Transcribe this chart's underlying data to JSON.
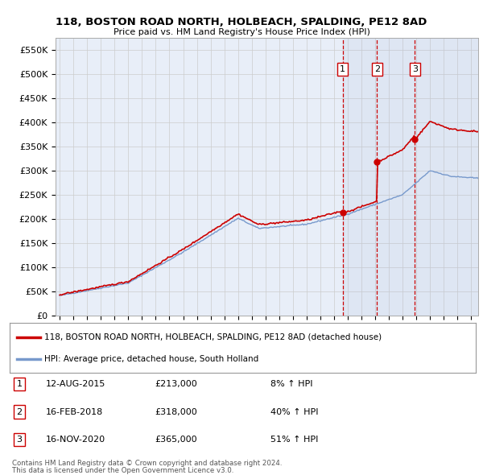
{
  "title": "118, BOSTON ROAD NORTH, HOLBEACH, SPALDING, PE12 8AD",
  "subtitle": "Price paid vs. HM Land Registry's House Price Index (HPI)",
  "ylim": [
    0,
    575000
  ],
  "yticks": [
    0,
    50000,
    100000,
    150000,
    200000,
    250000,
    300000,
    350000,
    400000,
    450000,
    500000,
    550000
  ],
  "ytick_labels": [
    "£0",
    "£50K",
    "£100K",
    "£150K",
    "£200K",
    "£250K",
    "£300K",
    "£350K",
    "£400K",
    "£450K",
    "£500K",
    "£550K"
  ],
  "xlim_start": 1994.7,
  "xlim_end": 2025.5,
  "background_color": "#ffffff",
  "plot_bg_color": "#e8eef8",
  "grid_color": "#cccccc",
  "red_line_color": "#cc0000",
  "blue_line_color": "#7799cc",
  "sale_marker_color": "#cc0000",
  "vline_color": "#cc0000",
  "sale1_x": 2015.62,
  "sale1_y": 213000,
  "sale2_x": 2018.12,
  "sale2_y": 318000,
  "sale3_x": 2020.88,
  "sale3_y": 365000,
  "legend_line1": "118, BOSTON ROAD NORTH, HOLBEACH, SPALDING, PE12 8AD (detached house)",
  "legend_line2": "HPI: Average price, detached house, South Holland",
  "table_rows": [
    [
      "1",
      "12-AUG-2015",
      "£213,000",
      "8% ↑ HPI"
    ],
    [
      "2",
      "16-FEB-2018",
      "£318,000",
      "40% ↑ HPI"
    ],
    [
      "3",
      "16-NOV-2020",
      "£365,000",
      "51% ↑ HPI"
    ]
  ],
  "footer_line1": "Contains HM Land Registry data © Crown copyright and database right 2024.",
  "footer_line2": "This data is licensed under the Open Government Licence v3.0."
}
